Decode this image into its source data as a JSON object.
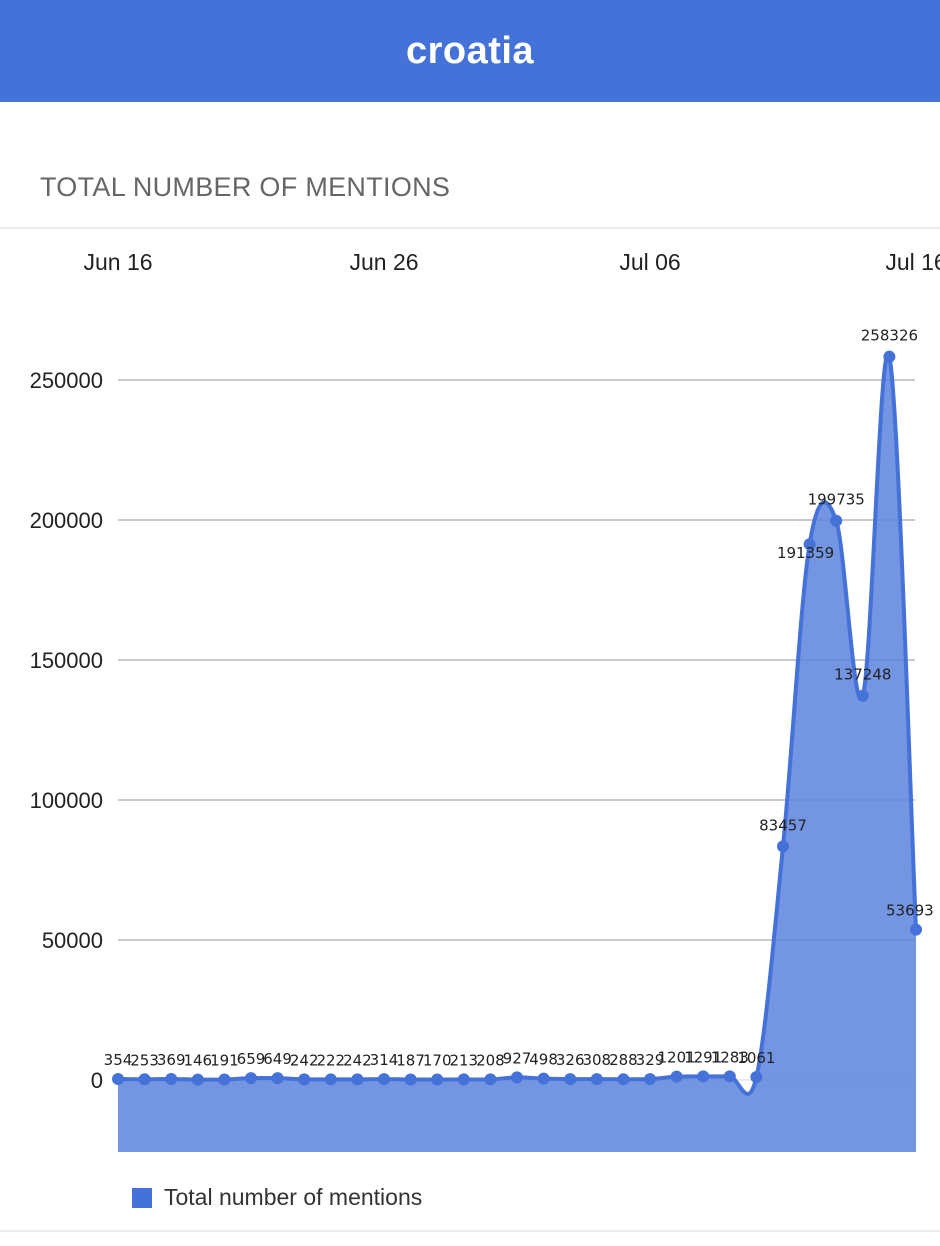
{
  "header": {
    "title": "croatia"
  },
  "section": {
    "title": "TOTAL NUMBER OF MENTIONS"
  },
  "colors": {
    "accent": "#4472d8",
    "area": "#5b83dd",
    "grid": "#b7b7b7"
  },
  "chart_data": {
    "type": "area",
    "title": "TOTAL NUMBER OF MENTIONS",
    "xlabel": "",
    "ylabel": "",
    "x_tick_labels": [
      "Jun 16",
      "Jun 26",
      "Jul 06",
      "Jul 16"
    ],
    "x_tick_indices": [
      0,
      10,
      20,
      30
    ],
    "y_ticks": [
      0,
      50000,
      100000,
      150000,
      200000,
      250000
    ],
    "ylim": [
      -28000,
      266000
    ],
    "grid": true,
    "legend_position": "bottom-left",
    "series": [
      {
        "name": "Total number of mentions",
        "labels": [
          "354",
          "253",
          "369",
          "146",
          "191",
          "659",
          "649",
          "242",
          "222",
          "242",
          "314",
          "187",
          "170",
          "213",
          "208",
          "927",
          "498",
          "326",
          "308",
          "288",
          "329",
          "1201",
          "1291",
          "1283",
          "1061",
          "83457",
          "191359",
          "199735",
          "137248",
          "258326",
          "53693"
        ],
        "values": [
          354,
          253,
          369,
          146,
          191,
          659,
          649,
          242,
          222,
          242,
          314,
          187,
          170,
          213,
          208,
          927,
          498,
          326,
          308,
          288,
          329,
          1201,
          1291,
          1283,
          1061,
          83457,
          191359,
          199735,
          137248,
          258326,
          53693
        ]
      }
    ]
  },
  "legend": {
    "label": "Total number of mentions"
  }
}
